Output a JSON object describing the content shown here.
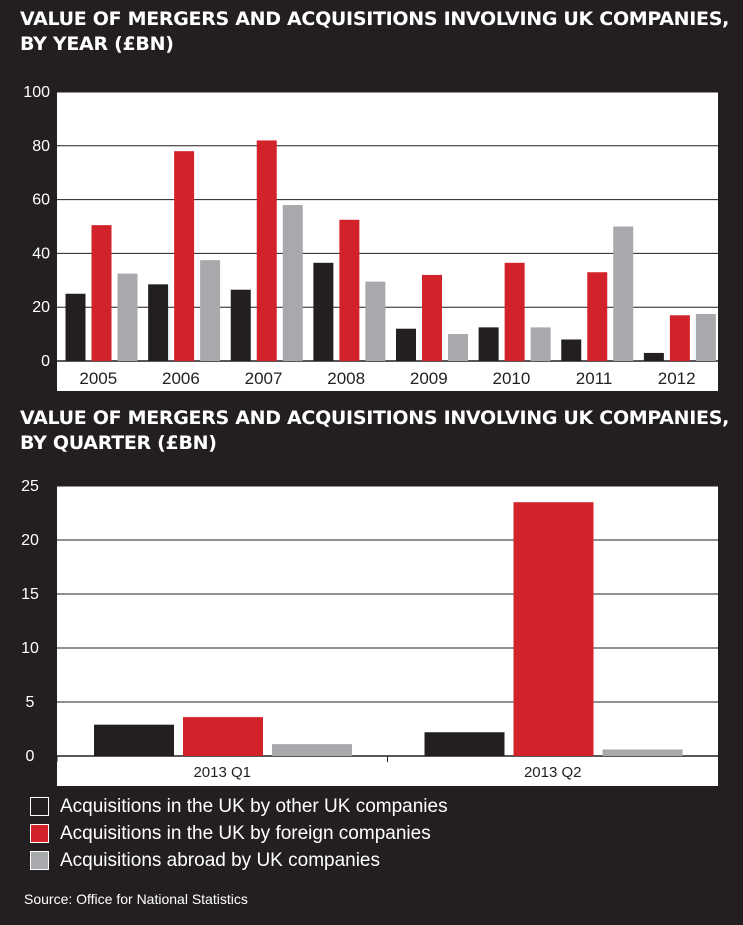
{
  "colors": {
    "background": "#231f20",
    "plot_bg": "#ffffff",
    "other_uk": "#231f20",
    "foreign": "#d2232a",
    "abroad": "#a7a9ac"
  },
  "chart_data": [
    {
      "type": "bar",
      "title": "VALUE OF MERGERS AND ACQUISITIONS INVOLVING UK COMPANIES, BY YEAR (£BN)",
      "categories": [
        "2005",
        "2006",
        "2007",
        "2008",
        "2009",
        "2010",
        "2011",
        "2012"
      ],
      "series": [
        {
          "name": "Acquisitions in the UK by other UK companies",
          "values": [
            25,
            28.5,
            26.5,
            36.5,
            12,
            12.5,
            8,
            3
          ]
        },
        {
          "name": "Acquisitions in the UK by foreign companies",
          "values": [
            50.5,
            78,
            82,
            52.5,
            32,
            36.5,
            33,
            17
          ]
        },
        {
          "name": "Acquisitions abroad by UK companies",
          "values": [
            32.5,
            37.5,
            58,
            29.5,
            10,
            12.5,
            50,
            17.5
          ]
        }
      ],
      "ylim": [
        0,
        100
      ],
      "yticks": [
        "0",
        "20",
        "40",
        "60",
        "80",
        "100"
      ],
      "grid": true
    },
    {
      "type": "bar",
      "title": "VALUE OF MERGERS AND ACQUISITIONS INVOLVING UK COMPANIES, BY QUARTER (£BN)",
      "categories": [
        "2013 Q1",
        "2013 Q2"
      ],
      "series": [
        {
          "name": "Acquisitions in the UK by other UK companies",
          "values": [
            2.9,
            2.2
          ]
        },
        {
          "name": "Acquisitions in the UK by foreign companies",
          "values": [
            3.6,
            23.5
          ]
        },
        {
          "name": "Acquisitions abroad by UK companies",
          "values": [
            1.1,
            0.6
          ]
        }
      ],
      "ylim": [
        0,
        25
      ],
      "yticks": [
        "0",
        "5",
        "10",
        "15",
        "20",
        "25"
      ],
      "grid": true
    }
  ],
  "legend": [
    {
      "label": "Acquisitions in the UK by other UK companies",
      "color": "#231f20"
    },
    {
      "label": "Acquisitions in the UK by foreign companies",
      "color": "#d2232a"
    },
    {
      "label": "Acquisitions abroad by UK companies",
      "color": "#a7a9ac"
    }
  ],
  "source": "Source: Office for National Statistics"
}
